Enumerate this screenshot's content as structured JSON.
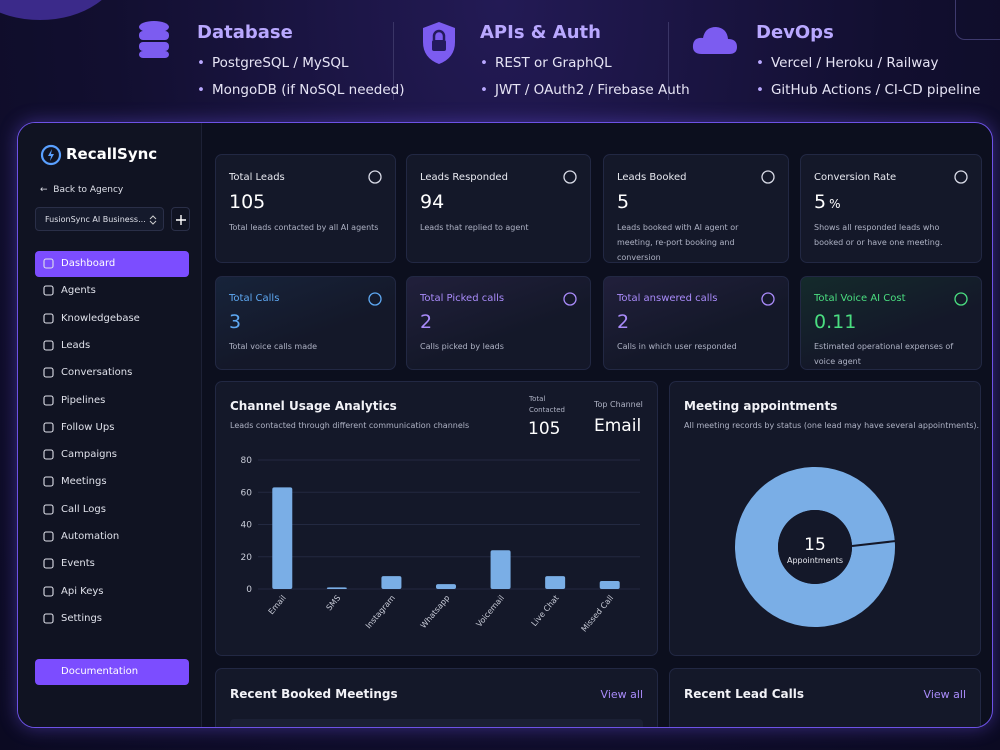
{
  "banner": [
    {
      "title": "Database",
      "items": [
        "PostgreSQL / MySQL",
        "MongoDB (if NoSQL needed)"
      ]
    },
    {
      "title": "APIs & Auth",
      "items": [
        "REST or GraphQL",
        "JWT / OAuth2 / Firebase Auth"
      ]
    },
    {
      "title": "DevOps",
      "items": [
        "Vercel / Heroku / Railway",
        "GitHub Actions / CI-CD pipeline"
      ]
    }
  ],
  "sidebar": {
    "brand": "RecallSync",
    "back": "Back to Agency",
    "workspace": "FusionSync AI Business...",
    "active": 0,
    "nav": [
      "Dashboard",
      "Agents",
      "Knowledgebase",
      "Leads",
      "Conversations",
      "Pipelines",
      "Follow Ups",
      "Campaigns",
      "Meetings",
      "Call Logs",
      "Automation",
      "Events",
      "Api Keys",
      "Settings"
    ],
    "footer": "Documentation"
  },
  "cards": [
    {
      "title": "Total Leads",
      "value": 105,
      "description": "Total leads contacted by all AI agents",
      "color": "#ffffff"
    },
    {
      "title": "Leads Responded",
      "value": 94,
      "description": "Leads that replied to agent",
      "color": "#ffffff"
    },
    {
      "title": "Leads Booked",
      "value": 5,
      "description": "Leads booked with AI agent or meeting, re-port booking and conversion",
      "color": "#ffffff"
    },
    {
      "title": "Conversion Rate",
      "value": 5,
      "unit": "%",
      "description": "Shows all responded leads who booked or or have one meeting.",
      "color": "#ffffff"
    },
    {
      "title": "Total Calls",
      "value": 3,
      "description": "Total voice calls made",
      "color": "#5ea8f2"
    },
    {
      "title": "Total Picked calls",
      "value": 2,
      "description": "Calls picked by leads",
      "color": "#a98bfa"
    },
    {
      "title": "Total answered calls",
      "value": 2,
      "description": "Calls in which user responded",
      "color": "#a98bfa"
    },
    {
      "title": "Total Voice AI Cost",
      "value": 0.11,
      "description": "Estimated operational expenses of voice agent",
      "color": "#4ade80"
    }
  ],
  "chart_data": [
    {
      "type": "bar",
      "title": "Channel Usage Analytics",
      "subtitle": "Leads contacted through different communication channels",
      "stats": [
        {
          "label": "Total Contacted",
          "value": 105
        },
        {
          "label": "Top Channel",
          "value": "Email"
        }
      ],
      "categories": [
        "Email",
        "SMS",
        "Instagram",
        "Whatsapp",
        "Voicemail",
        "Live Chat",
        "Missed Call"
      ],
      "values": [
        63,
        1,
        8,
        3,
        24,
        8,
        5
      ],
      "color": "#7aaee6",
      "ylim": [
        0,
        80
      ],
      "yticks": [
        0,
        20,
        40,
        60,
        80
      ],
      "grid": true
    },
    {
      "type": "donut",
      "title": "Meeting appointments",
      "subtitle": "All meeting records by status (one lead may have several appointments).",
      "values": [
        15
      ],
      "center_label": "Appointments",
      "color": "#7aaee6"
    }
  ],
  "panels": [
    {
      "title": "Recent Booked Meetings",
      "link": "View all"
    },
    {
      "title": "Recent Lead Calls",
      "link": "View all"
    }
  ]
}
